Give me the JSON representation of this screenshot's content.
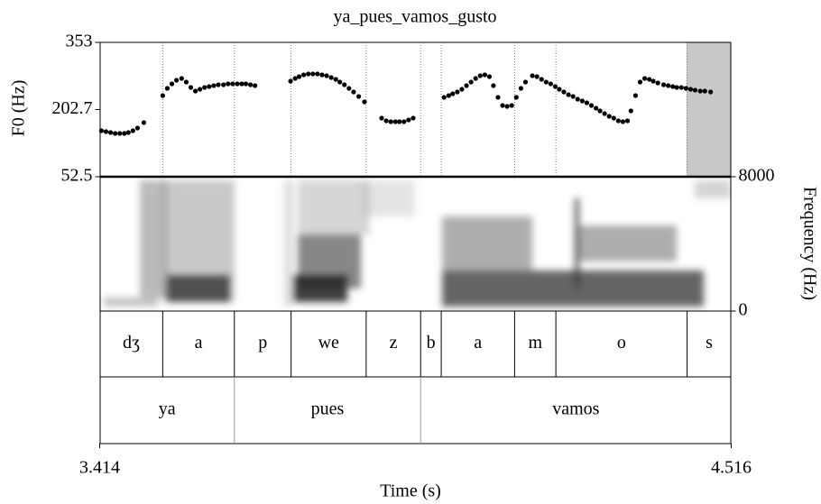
{
  "chart_data": {
    "type": "scatter",
    "title": "ya_pues_vamos_gusto",
    "xlabel": "Time (s)",
    "ylabel": "F0 (Hz)",
    "xlim": [
      3.414,
      4.516
    ],
    "xticks": [
      3.414,
      4.516
    ],
    "ylim": [
      52.5,
      353
    ],
    "yticks": [
      52.5,
      202.7,
      353
    ],
    "color": "#000000",
    "x": [
      3.417,
      3.425,
      3.433,
      3.441,
      3.449,
      3.457,
      3.464,
      3.472,
      3.48,
      3.491,
      3.524,
      3.532,
      3.54,
      3.548,
      3.557,
      3.565,
      3.573,
      3.581,
      3.589,
      3.597,
      3.605,
      3.613,
      3.621,
      3.63,
      3.638,
      3.646,
      3.654,
      3.662,
      3.669,
      3.677,
      3.685,
      3.747,
      3.755,
      3.762,
      3.77,
      3.778,
      3.786,
      3.794,
      3.802,
      3.81,
      3.818,
      3.826,
      3.833,
      3.841,
      3.849,
      3.857,
      3.866,
      3.876,
      3.906,
      3.914,
      3.922,
      3.93,
      3.937,
      3.945,
      3.953,
      3.961,
      4.015,
      4.023,
      4.03,
      4.038,
      4.046,
      4.054,
      4.062,
      4.07,
      4.078,
      4.086,
      4.094,
      4.101,
      4.109,
      4.117,
      4.125,
      4.133,
      4.141,
      4.149,
      4.157,
      4.169,
      4.177,
      4.185,
      4.193,
      4.201,
      4.209,
      4.216,
      4.224,
      4.232,
      4.24,
      4.248,
      4.256,
      4.264,
      4.272,
      4.28,
      4.287,
      4.295,
      4.303,
      4.311,
      4.319,
      4.327,
      4.335,
      4.341,
      4.349,
      4.357,
      4.365,
      4.373,
      4.38,
      4.388,
      4.398,
      4.406,
      4.414,
      4.421,
      4.429,
      4.437,
      4.445,
      4.453,
      4.462,
      4.47,
      4.48
    ],
    "values": [
      155.4,
      153.3,
      151.3,
      149.3,
      149.3,
      149.3,
      151.3,
      155.4,
      161.4,
      173.5,
      234.0,
      250.1,
      260.2,
      268.3,
      272.3,
      264.3,
      252.2,
      244.1,
      248.1,
      252.2,
      254.2,
      256.2,
      258.2,
      258.2,
      260.2,
      260.2,
      260.2,
      260.2,
      260.2,
      258.2,
      256.2,
      266.3,
      272.3,
      276.4,
      280.4,
      282.4,
      282.4,
      282.4,
      280.4,
      278.4,
      274.3,
      270.3,
      264.3,
      258.2,
      250.1,
      242.1,
      232.0,
      219.9,
      183.6,
      177.5,
      175.5,
      175.5,
      175.5,
      175.5,
      179.6,
      183.6,
      230.0,
      234.0,
      238.0,
      242.1,
      248.1,
      256.2,
      264.3,
      272.3,
      278.4,
      280.4,
      276.4,
      256.2,
      230.0,
      211.8,
      209.8,
      211.8,
      230.0,
      250.1,
      264.3,
      278.4,
      276.4,
      270.3,
      264.3,
      260.2,
      254.2,
      248.1,
      242.1,
      236.0,
      232.0,
      225.9,
      221.9,
      217.9,
      211.8,
      205.8,
      199.7,
      193.7,
      187.6,
      183.6,
      177.5,
      175.5,
      177.5,
      199.7,
      234.0,
      264.3,
      272.3,
      270.3,
      266.3,
      262.2,
      258.2,
      256.2,
      254.2,
      252.2,
      252.2,
      250.1,
      248.1,
      246.1,
      244.1,
      244.1,
      242.1
    ],
    "spectrogram": {
      "ylabel": "Frequency (Hz)",
      "ylim": [
        0,
        8000
      ],
      "yticks": [
        0,
        8000
      ]
    },
    "tiers": [
      {
        "boundaries": [
          3.524,
          3.649,
          3.748,
          3.879,
          3.974,
          4.01,
          4.138,
          4.21,
          4.439
        ],
        "labels": [
          "dʒ",
          "a",
          "p",
          "we",
          "z",
          "b",
          "a",
          "m",
          "o",
          "s"
        ]
      },
      {
        "boundaries": [
          3.649,
          3.974
        ],
        "labels": [
          "ya",
          "pues",
          "vamos"
        ]
      }
    ]
  }
}
